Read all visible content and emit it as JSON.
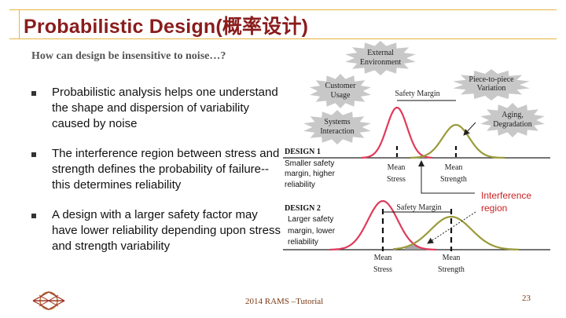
{
  "slide": {
    "title": "Probabilistic Design(概率设计)",
    "subtitle": "How can design be insensitive to  noise…?",
    "bullets": [
      "Probabilistic analysis helps one understand the shape and dispersion of variability caused by noise",
      "The interference region between stress and strength defines the probability of failure--this determines reliability",
      "A design with a larger safety factor may have lower reliability depending upon stress and strength variability"
    ],
    "footer": "2014 RAMS –Tutorial",
    "page_number": "23"
  },
  "diagram": {
    "noise_factors": {
      "external": [
        "External",
        "Environment"
      ],
      "customer": [
        "Customer",
        "Usage"
      ],
      "systems": [
        "Systems",
        "Interaction"
      ],
      "piece": [
        "Piece-to-piece",
        "Variation"
      ],
      "aging": [
        "Aging,",
        "Degradation"
      ]
    },
    "design1": {
      "title": "DESIGN 1",
      "desc": [
        "Smaller safety",
        "margin, higher",
        "reliability"
      ],
      "safety_margin": "Safety Margin",
      "mean_stress": [
        "Mean",
        "Stress"
      ],
      "mean_strength": [
        "Mean",
        "Strength"
      ]
    },
    "design2": {
      "title": "DESIGN 2",
      "desc": [
        "Larger safety",
        "margin, lower",
        "reliability"
      ],
      "safety_margin": "Safety Margin",
      "mean_stress": [
        "Mean",
        "Stress"
      ],
      "mean_strength": [
        "Mean",
        "Strength"
      ]
    },
    "interference": [
      "Interference",
      "region"
    ],
    "colors": {
      "stress": "#e03a5a",
      "strength": "#9a9a3a",
      "title": "#8a1c1c",
      "frame": "#e8b441",
      "interference_label": "#cc2222"
    }
  }
}
